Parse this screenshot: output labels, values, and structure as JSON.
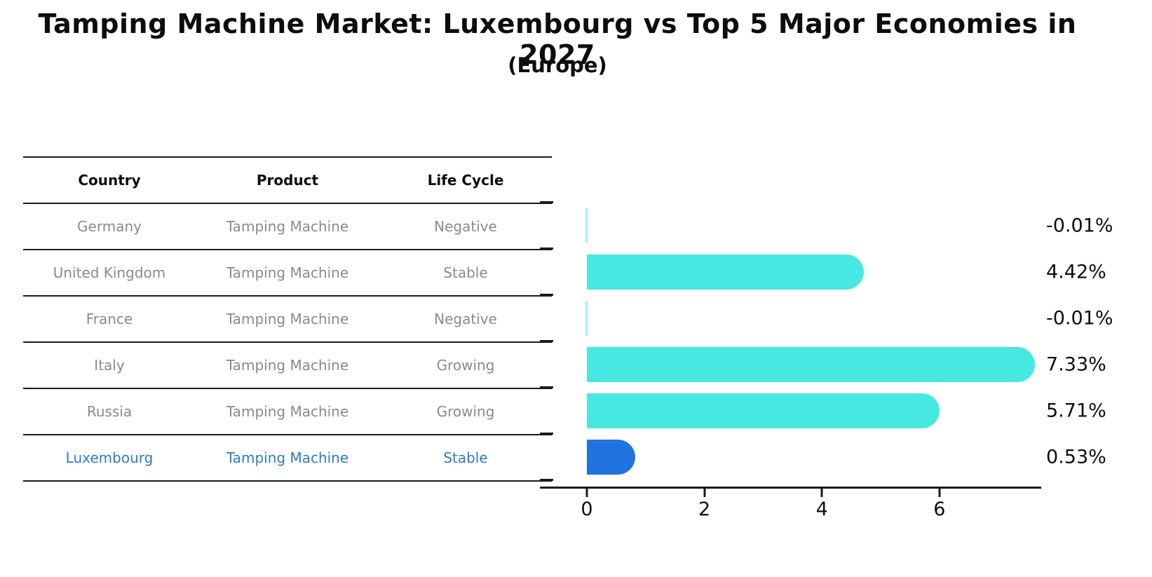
{
  "title": "Tamping Machine Market: Luxembourg vs Top 5 Major Economies in 2027",
  "subtitle": "(Europe)",
  "table": {
    "headers": [
      "Country",
      "Product",
      "Life Cycle"
    ],
    "header_keys": [
      "country",
      "product",
      "life_cycle"
    ],
    "rows": [
      {
        "country": "Germany",
        "product": "Tamping Machine",
        "life_cycle": "Negative",
        "highlight": false
      },
      {
        "country": "United Kingdom",
        "product": "Tamping Machine",
        "life_cycle": "Stable",
        "highlight": false
      },
      {
        "country": "France",
        "product": "Tamping Machine",
        "life_cycle": "Negative",
        "highlight": false
      },
      {
        "country": "Italy",
        "product": "Tamping Machine",
        "life_cycle": "Growing",
        "highlight": false
      },
      {
        "country": "Russia",
        "product": "Tamping Machine",
        "life_cycle": "Growing",
        "highlight": false
      },
      {
        "country": "Luxembourg",
        "product": "Tamping Machine",
        "life_cycle": "Stable",
        "highlight": true
      }
    ]
  },
  "chart_data": {
    "type": "bar",
    "orientation": "horizontal",
    "categories": [
      "Germany",
      "United Kingdom",
      "France",
      "Italy",
      "Russia",
      "Luxembourg"
    ],
    "values": [
      -0.01,
      4.42,
      -0.01,
      7.33,
      5.71,
      0.53
    ],
    "value_labels": [
      "-0.01%",
      "4.42%",
      "-0.01%",
      "7.33%",
      "5.71%",
      "0.53%"
    ],
    "xticks": [
      0,
      2,
      4,
      6
    ],
    "xlim": [
      -0.8,
      7.73
    ],
    "grid": false,
    "legend": false,
    "bar_color": "#47E8E2",
    "highlight_color": "#2173DF",
    "highlight_index": 5,
    "value_label_color": "#0D0D0D"
  },
  "colors": {
    "background": "#FFFFFF",
    "table_text": "#8A8A8A",
    "table_header_text": "#0D0D0D",
    "highlight_text": "#2A7CC9",
    "axis_line": "#1A1A1A"
  }
}
